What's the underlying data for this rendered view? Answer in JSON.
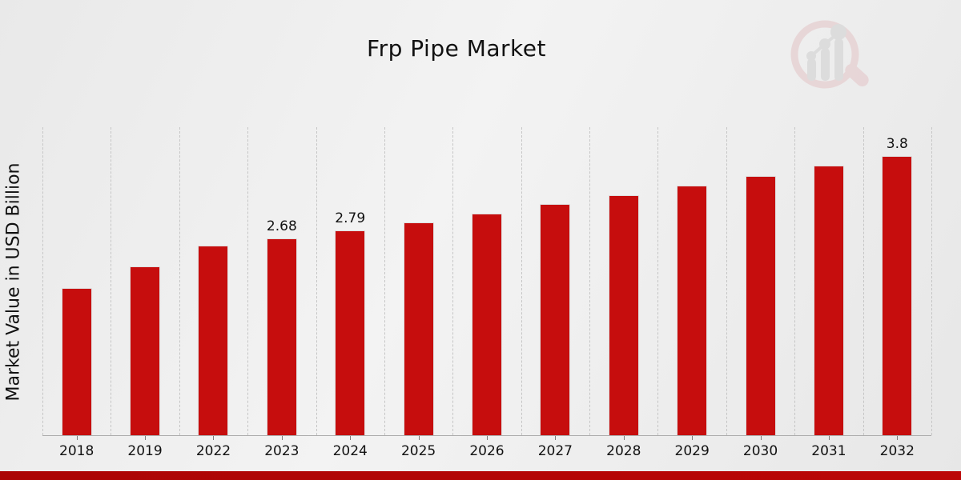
{
  "page": {
    "title": "Frp Pipe Market",
    "ylabel": "Market Value in USD Billion",
    "watermark_icon": "magnifier-bar-chart-logo"
  },
  "colors": {
    "bar": "#c60d0d",
    "bar_border": "#dedede",
    "gridline": "#c6c6c6",
    "axis_line": "#adadad",
    "text": "#111111",
    "footer_strip": "#b30606",
    "background_start": "#e9e9e9",
    "background_end": "#e7e7e7"
  },
  "chart_data": {
    "type": "bar",
    "title": "Frp Pipe Market",
    "xlabel": "",
    "ylabel": "Market Value in USD Billion",
    "categories": [
      "2018",
      "2019",
      "2022",
      "2023",
      "2024",
      "2025",
      "2026",
      "2027",
      "2028",
      "2029",
      "2030",
      "2031",
      "2032"
    ],
    "values": [
      2.0,
      2.3,
      2.58,
      2.68,
      2.79,
      2.89,
      3.01,
      3.14,
      3.26,
      3.39,
      3.53,
      3.67,
      3.8
    ],
    "data_labels": {
      "3": "2.68",
      "4": "2.79",
      "12": "3.8"
    },
    "ylim": [
      0,
      4.2
    ],
    "grid": "vertical-dashed",
    "legend": "none",
    "bar_color": "#c60d0d"
  }
}
